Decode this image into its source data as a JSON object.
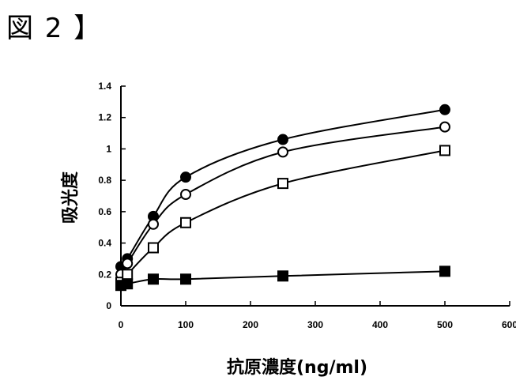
{
  "figure_label": "図 2 】",
  "chart_data": {
    "type": "line",
    "xlabel": "抗原濃度(ng/ml)",
    "ylabel": "吸光度",
    "xlim": [
      0,
      600
    ],
    "ylim": [
      0,
      1.4
    ],
    "xticks": [
      0,
      100,
      200,
      300,
      400,
      500,
      600
    ],
    "yticks": [
      0,
      0.2,
      0.4,
      0.6,
      0.8,
      1,
      1.2,
      1.4
    ],
    "ytick_labels": [
      "0",
      "0.2",
      "0.4",
      "0.6",
      "0.8",
      "1",
      "1.2",
      "1.4"
    ],
    "grid": false,
    "series": [
      {
        "marker": "filled-circle",
        "points": [
          [
            0,
            0.25
          ],
          [
            10,
            0.3
          ],
          [
            50,
            0.57
          ],
          [
            100,
            0.82
          ],
          [
            250,
            1.06
          ],
          [
            500,
            1.25
          ]
        ]
      },
      {
        "marker": "open-circle",
        "points": [
          [
            0,
            0.2
          ],
          [
            10,
            0.27
          ],
          [
            50,
            0.52
          ],
          [
            100,
            0.71
          ],
          [
            250,
            0.98
          ],
          [
            500,
            1.14
          ]
        ]
      },
      {
        "marker": "open-square",
        "points": [
          [
            0,
            0.15
          ],
          [
            10,
            0.2
          ],
          [
            50,
            0.37
          ],
          [
            100,
            0.53
          ],
          [
            250,
            0.78
          ],
          [
            500,
            0.99
          ]
        ]
      },
      {
        "marker": "filled-square",
        "points": [
          [
            0,
            0.13
          ],
          [
            10,
            0.14
          ],
          [
            50,
            0.17
          ],
          [
            100,
            0.17
          ],
          [
            250,
            0.19
          ],
          [
            500,
            0.22
          ]
        ]
      }
    ]
  }
}
